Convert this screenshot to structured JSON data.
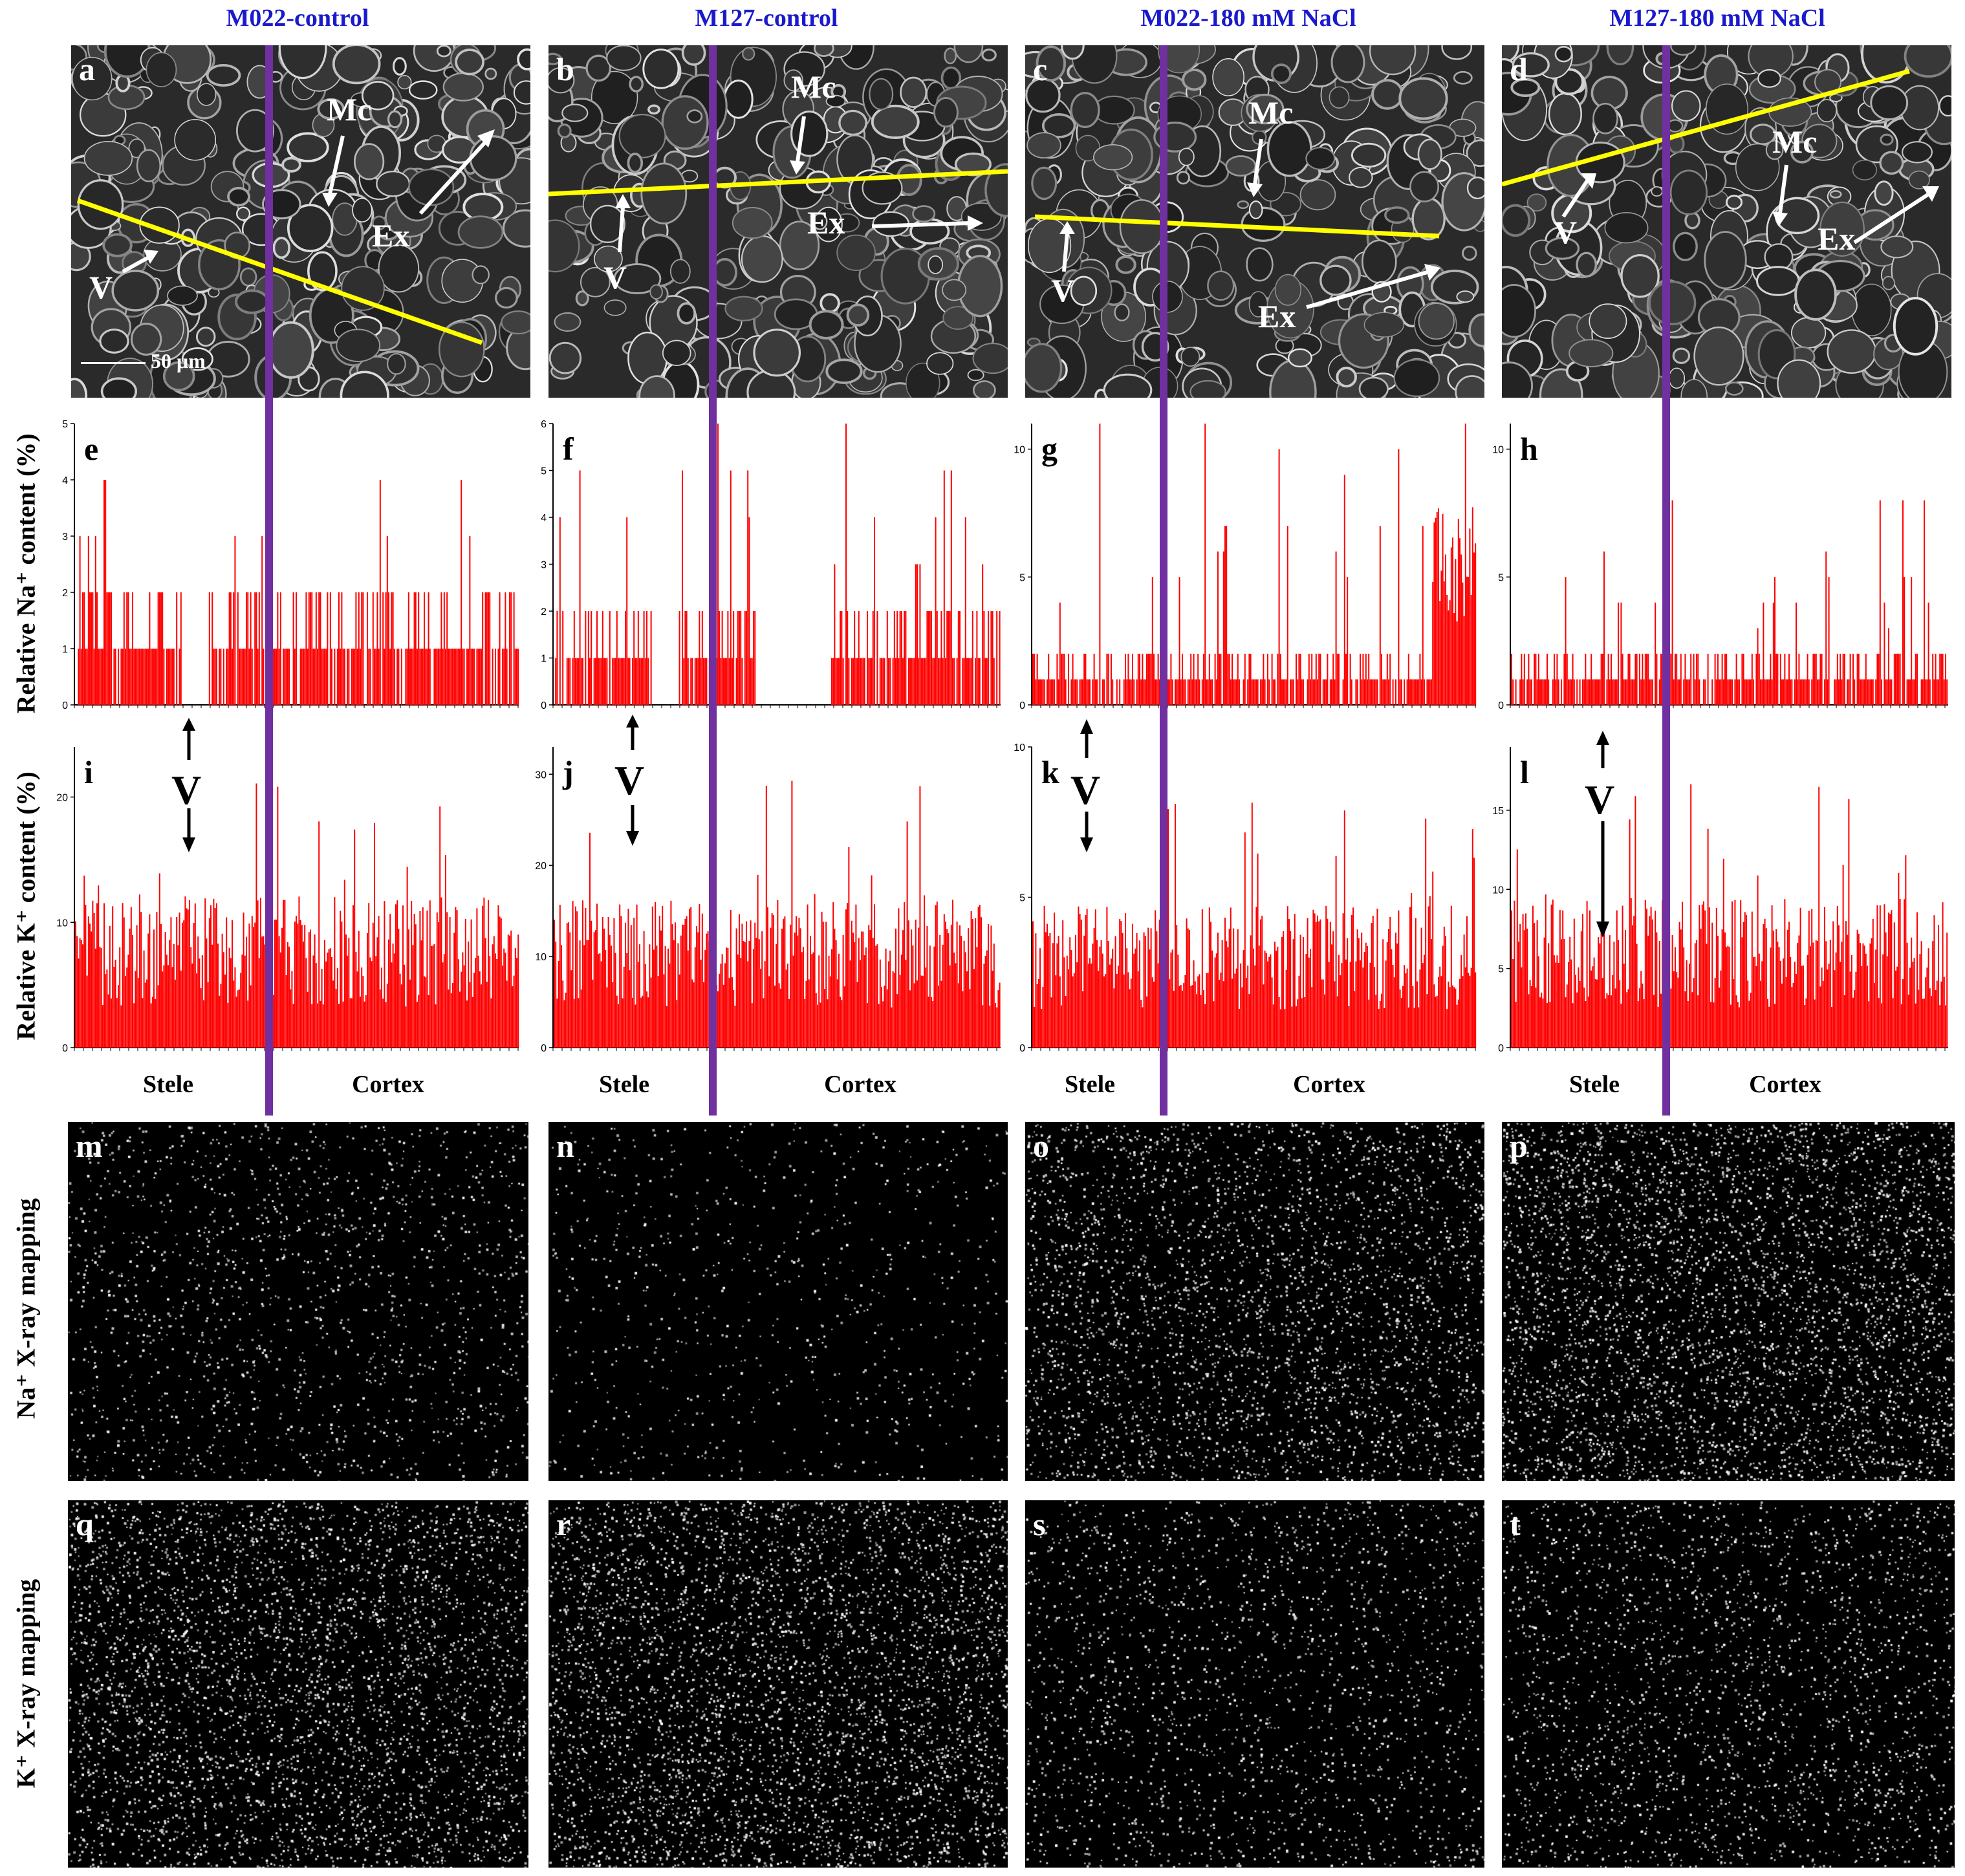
{
  "columns": [
    {
      "title": "M022-control"
    },
    {
      "title": "M127-control"
    },
    {
      "title": "M022-180 mM NaCl"
    },
    {
      "title": "M127-180 mM NaCl"
    }
  ],
  "sem_panels": [
    {
      "label": "a",
      "features": [
        "Mc",
        "Ex",
        "V"
      ],
      "scale_bar": "50 μm"
    },
    {
      "label": "b",
      "features": [
        "Mc",
        "Ex",
        "V"
      ]
    },
    {
      "label": "c",
      "features": [
        "Mc",
        "Ex",
        "V"
      ]
    },
    {
      "label": "d",
      "features": [
        "Mc",
        "Ex",
        "V"
      ]
    }
  ],
  "row_labels": {
    "na_content": "Relative Na⁺ content (%)",
    "k_content": "Relative K⁺ content (%)",
    "na_map": "Na⁺ X-ray mapping",
    "k_map": "K⁺ X-ray mapping"
  },
  "region_labels": {
    "stele": "Stele",
    "cortex": "Cortex",
    "vessel": "V"
  },
  "chart_data": [
    {
      "type": "bar",
      "panel": "e",
      "series_name": "Na+",
      "ylim": [
        0,
        5
      ],
      "yticks": [
        0,
        1,
        2,
        3,
        4,
        5
      ],
      "max_value": 5,
      "stele_fraction": 0.44
    },
    {
      "type": "bar",
      "panel": "f",
      "series_name": "Na+",
      "ylim": [
        0,
        6
      ],
      "yticks": [
        0,
        1,
        2,
        3,
        4,
        5,
        6
      ],
      "max_value": 6,
      "stele_fraction": 0.36
    },
    {
      "type": "bar",
      "panel": "g",
      "series_name": "Na+",
      "ylim": [
        0,
        11
      ],
      "yticks": [
        0,
        5,
        10
      ],
      "max_value": 11,
      "stele_fraction": 0.32
    },
    {
      "type": "bar",
      "panel": "h",
      "series_name": "Na+",
      "ylim": [
        0,
        11
      ],
      "yticks": [
        0,
        5,
        10
      ],
      "max_value": 9,
      "stele_fraction": 0.36
    },
    {
      "type": "bar",
      "panel": "i",
      "series_name": "K+",
      "ylim": [
        0,
        24
      ],
      "yticks": [
        0,
        10,
        20
      ],
      "max_value": 23,
      "stele_fraction": 0.44
    },
    {
      "type": "bar",
      "panel": "j",
      "series_name": "K+",
      "ylim": [
        0,
        33
      ],
      "yticks": [
        0,
        10,
        20,
        30
      ],
      "max_value": 31,
      "stele_fraction": 0.36
    },
    {
      "type": "bar",
      "panel": "k",
      "series_name": "K+",
      "ylim": [
        0,
        10
      ],
      "yticks": [
        0,
        5,
        10
      ],
      "max_value": 9,
      "stele_fraction": 0.32
    },
    {
      "type": "bar",
      "panel": "l",
      "series_name": "K+",
      "ylim": [
        0,
        19
      ],
      "yticks": [
        0,
        5,
        10,
        15
      ],
      "max_value": 18,
      "stele_fraction": 0.36
    }
  ],
  "map_panels": [
    {
      "label": "m",
      "element": "Na+",
      "density": 0.35
    },
    {
      "label": "n",
      "element": "Na+",
      "density": 0.18
    },
    {
      "label": "o",
      "element": "Na+",
      "density": 0.75
    },
    {
      "label": "p",
      "element": "Na+",
      "density": 1.0
    },
    {
      "label": "q",
      "element": "K+",
      "density": 0.9
    },
    {
      "label": "r",
      "element": "K+",
      "density": 1.0
    },
    {
      "label": "s",
      "element": "K+",
      "density": 0.45
    },
    {
      "label": "t",
      "element": "K+",
      "density": 0.55
    }
  ],
  "colors": {
    "title": "#1a1acc",
    "bars": "#ff0000",
    "trace_line": "#ffff00",
    "divider": "#7030a0"
  }
}
